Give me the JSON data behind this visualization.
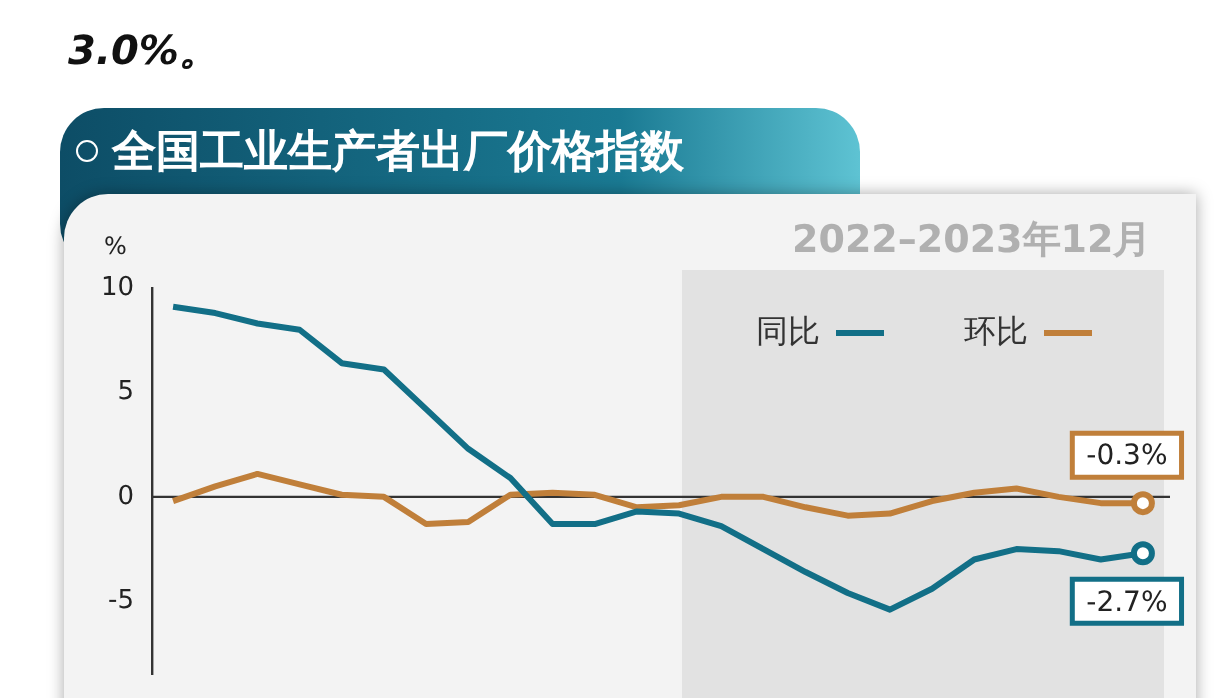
{
  "chart_data": {
    "type": "line",
    "title": "全国工业生产者出厂价格指数",
    "subtitle": "2022–2023年12月",
    "ylabel": "%",
    "annotations": [
      "3.0%。"
    ],
    "categories": [
      null,
      null,
      null,
      null,
      null,
      null,
      null,
      null,
      null,
      null,
      null,
      null,
      null,
      null,
      null,
      null,
      null,
      null,
      null,
      null,
      null,
      null,
      null,
      null
    ],
    "series": [
      {
        "name": "同比",
        "color": "#126f87",
        "values": [
          9.1,
          8.8,
          8.3,
          8.0,
          6.4,
          6.1,
          4.2,
          2.3,
          0.9,
          -1.3,
          -1.3,
          -0.7,
          -0.8,
          -1.4,
          -2.5,
          -3.6,
          -4.6,
          -5.4,
          -4.4,
          -3.0,
          -2.5,
          -2.6,
          -3.0,
          -2.7
        ],
        "value_labels": [
          null,
          null,
          null,
          null,
          null,
          null,
          null,
          null,
          null,
          null,
          null,
          null,
          null,
          null,
          null,
          null,
          null,
          null,
          null,
          null,
          null,
          null,
          null,
          "-2.7%"
        ]
      },
      {
        "name": "环比",
        "color": "#c07f3a",
        "values": [
          -0.2,
          0.5,
          1.1,
          0.6,
          0.1,
          0.0,
          -1.3,
          -1.2,
          0.1,
          0.2,
          0.1,
          -0.5,
          -0.4,
          0.0,
          0.0,
          -0.5,
          -0.9,
          -0.8,
          -0.2,
          0.2,
          0.4,
          0.0,
          -0.3,
          -0.3
        ],
        "value_labels": [
          null,
          null,
          null,
          null,
          null,
          null,
          null,
          null,
          null,
          null,
          null,
          null,
          null,
          null,
          null,
          null,
          null,
          null,
          null,
          null,
          null,
          null,
          null,
          "-0.3%"
        ]
      }
    ],
    "ylim": [
      -8.5,
      10
    ],
    "yticks": [
      10,
      5,
      0,
      -5
    ],
    "tick_labels": "y",
    "grid": false,
    "legend": "top right",
    "line_style": "solid",
    "ref_lines": [
      {
        "axis": "y",
        "value": 0,
        "color": "#333333"
      }
    ]
  }
}
